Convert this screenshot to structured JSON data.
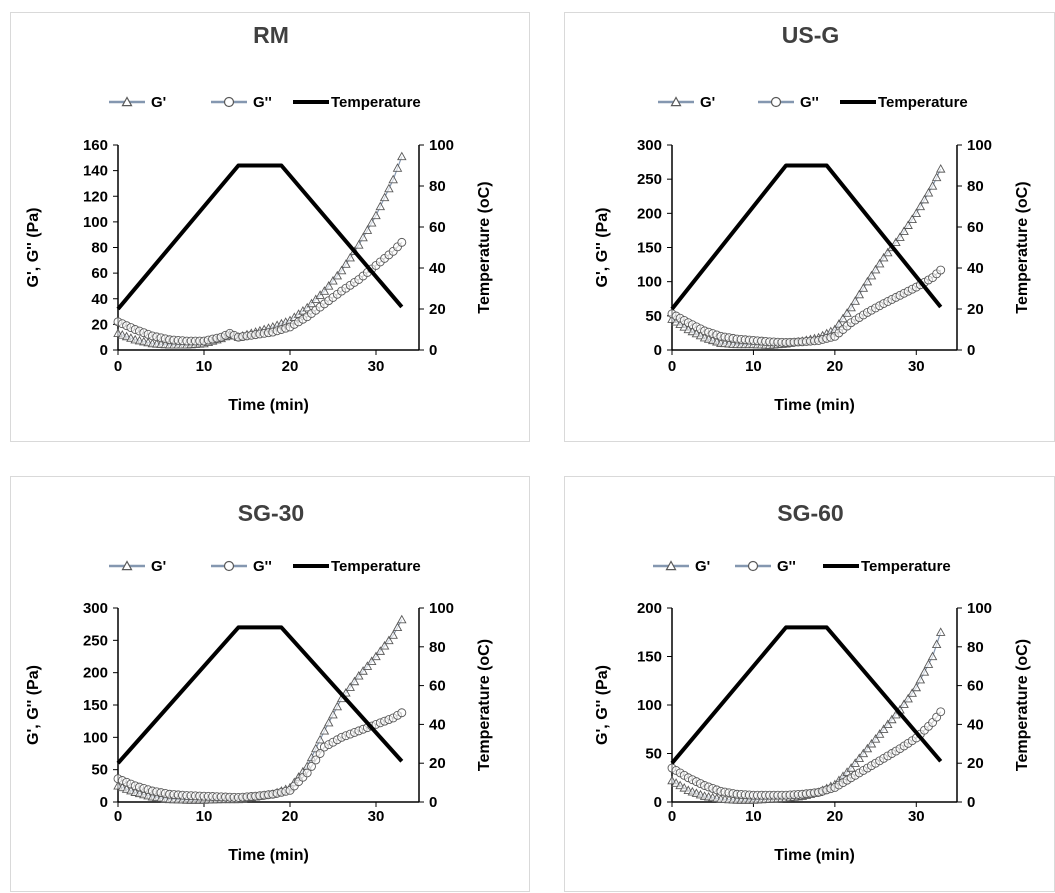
{
  "colors": {
    "g_prime": "#8497b0",
    "g_double": "#8e8e8e",
    "temperature": "#000000",
    "marker_stroke": "#595959"
  },
  "chart_data": [
    {
      "type": "line",
      "title": "RM",
      "legend": [
        "G'",
        "G''",
        "Temperature"
      ],
      "legend_position": "top",
      "xlabel": "Time (min)",
      "ylabel": "G', G'' (Pa)",
      "y2label": "Temperature (oC)",
      "xlim": [
        0,
        35
      ],
      "ylim": [
        0,
        160
      ],
      "y2lim": [
        0,
        100
      ],
      "xticks": [
        "0",
        "10",
        "20",
        "30"
      ],
      "yticks": [
        "0",
        "20",
        "40",
        "60",
        "80",
        "100",
        "120",
        "140",
        "160"
      ],
      "y2ticks": [
        "0",
        "20",
        "40",
        "60",
        "80",
        "100"
      ],
      "grid": false,
      "series": [
        {
          "name": "G'",
          "marker": "triangle",
          "axis": "left",
          "x": [
            0,
            2,
            4,
            6,
            8,
            10,
            12,
            13,
            14,
            16,
            18,
            20,
            22,
            24,
            26,
            28,
            30,
            32,
            33
          ],
          "y": [
            13,
            8,
            5,
            4,
            4,
            5,
            9,
            12,
            10,
            14,
            18,
            23,
            33,
            46,
            62,
            82,
            105,
            133,
            151
          ]
        },
        {
          "name": "G''",
          "marker": "circle",
          "axis": "left",
          "x": [
            0,
            2,
            4,
            6,
            8,
            10,
            12,
            13,
            14,
            16,
            18,
            20,
            22,
            24,
            26,
            28,
            30,
            32,
            33
          ],
          "y": [
            22,
            16,
            11,
            8,
            7,
            7,
            10,
            13,
            10,
            12,
            14,
            18,
            26,
            36,
            46,
            55,
            66,
            77,
            84
          ]
        },
        {
          "name": "Temperature",
          "marker": "none",
          "axis": "right",
          "x": [
            0,
            14,
            19,
            33
          ],
          "y": [
            20,
            90,
            90,
            21
          ]
        }
      ]
    },
    {
      "type": "line",
      "title": "US-G",
      "legend": [
        "G'",
        "G''",
        "Temperature"
      ],
      "legend_position": "top",
      "xlabel": "Time (min)",
      "ylabel": "G', G'' (Pa)",
      "y2label": "Temperature (oC)",
      "xlim": [
        0,
        35
      ],
      "ylim": [
        0,
        300
      ],
      "y2lim": [
        0,
        100
      ],
      "xticks": [
        "0",
        "10",
        "20",
        "30"
      ],
      "yticks": [
        "0",
        "50",
        "100",
        "150",
        "200",
        "250",
        "300"
      ],
      "y2ticks": [
        "0",
        "20",
        "40",
        "60",
        "80",
        "100"
      ],
      "grid": false,
      "series": [
        {
          "name": "G'",
          "marker": "triangle",
          "axis": "left",
          "x": [
            0,
            2,
            4,
            6,
            8,
            10,
            12,
            14,
            16,
            18,
            20,
            22,
            24,
            26,
            28,
            30,
            32,
            33
          ],
          "y": [
            45,
            30,
            18,
            10,
            8,
            8,
            7,
            9,
            13,
            18,
            30,
            62,
            100,
            135,
            165,
            200,
            240,
            265
          ]
        },
        {
          "name": "G''",
          "marker": "circle",
          "axis": "left",
          "x": [
            0,
            2,
            4,
            6,
            8,
            10,
            12,
            14,
            16,
            18,
            20,
            22,
            24,
            26,
            28,
            30,
            32,
            33
          ],
          "y": [
            53,
            40,
            28,
            20,
            16,
            14,
            12,
            11,
            12,
            14,
            20,
            40,
            55,
            68,
            80,
            92,
            106,
            117
          ]
        },
        {
          "name": "Temperature",
          "marker": "none",
          "axis": "right",
          "x": [
            0,
            14,
            19,
            33
          ],
          "y": [
            20,
            90,
            90,
            21
          ]
        }
      ]
    },
    {
      "type": "line",
      "title": "SG-30",
      "legend": [
        "G'",
        "G''",
        "Temperature"
      ],
      "legend_position": "top",
      "xlabel": "Time (min)",
      "ylabel": "G', G'' (Pa)",
      "y2label": "Temperature (oC)",
      "xlim": [
        0,
        35
      ],
      "ylim": [
        0,
        300
      ],
      "y2lim": [
        0,
        100
      ],
      "xticks": [
        "0",
        "10",
        "20",
        "30"
      ],
      "yticks": [
        "0",
        "50",
        "100",
        "150",
        "200",
        "250",
        "300"
      ],
      "y2ticks": [
        "0",
        "20",
        "40",
        "60",
        "80",
        "100"
      ],
      "grid": false,
      "series": [
        {
          "name": "G'",
          "marker": "triangle",
          "axis": "left",
          "x": [
            0,
            2,
            4,
            6,
            8,
            10,
            12,
            14,
            16,
            18,
            20,
            22,
            24,
            26,
            28,
            30,
            32,
            33
          ],
          "y": [
            25,
            15,
            8,
            4,
            3,
            3,
            4,
            4,
            8,
            12,
            22,
            55,
            110,
            160,
            195,
            225,
            258,
            282
          ]
        },
        {
          "name": "G''",
          "marker": "circle",
          "axis": "left",
          "x": [
            0,
            2,
            4,
            6,
            8,
            10,
            12,
            14,
            16,
            18,
            20,
            22,
            24,
            26,
            28,
            30,
            32,
            33
          ],
          "y": [
            36,
            25,
            17,
            12,
            10,
            9,
            8,
            7,
            9,
            12,
            18,
            45,
            85,
            100,
            110,
            120,
            130,
            138
          ]
        },
        {
          "name": "Temperature",
          "marker": "none",
          "axis": "right",
          "x": [
            0,
            14,
            19,
            33
          ],
          "y": [
            20,
            90,
            90,
            21
          ]
        }
      ]
    },
    {
      "type": "line",
      "title": "SG-60",
      "legend": [
        "G'",
        "G''",
        "Temperature"
      ],
      "legend_position": "top",
      "xlabel": "Time (min)",
      "ylabel": "G', G'' (Pa)",
      "y2label": "Temperature (oC)",
      "xlim": [
        0,
        35
      ],
      "ylim": [
        0,
        200
      ],
      "y2lim": [
        0,
        100
      ],
      "xticks": [
        "0",
        "10",
        "20",
        "30"
      ],
      "yticks": [
        "0",
        "50",
        "100",
        "150",
        "200"
      ],
      "y2ticks": [
        "0",
        "20",
        "40",
        "60",
        "80",
        "100"
      ],
      "grid": false,
      "series": [
        {
          "name": "G'",
          "marker": "triangle",
          "axis": "left",
          "x": [
            0,
            2,
            4,
            6,
            8,
            10,
            12,
            14,
            16,
            18,
            20,
            22,
            24,
            26,
            28,
            30,
            32,
            33
          ],
          "y": [
            22,
            12,
            6,
            3,
            2,
            2,
            3,
            4,
            6,
            10,
            18,
            35,
            55,
            75,
            95,
            118,
            150,
            175
          ]
        },
        {
          "name": "G''",
          "marker": "circle",
          "axis": "left",
          "x": [
            0,
            2,
            4,
            6,
            8,
            10,
            12,
            14,
            16,
            18,
            20,
            22,
            24,
            26,
            28,
            30,
            32,
            33
          ],
          "y": [
            35,
            25,
            17,
            11,
            8,
            7,
            7,
            7,
            8,
            10,
            15,
            25,
            35,
            45,
            55,
            66,
            82,
            93
          ]
        },
        {
          "name": "Temperature",
          "marker": "none",
          "axis": "right",
          "x": [
            0,
            14,
            19,
            33
          ],
          "y": [
            20,
            90,
            90,
            21
          ]
        }
      ]
    }
  ]
}
